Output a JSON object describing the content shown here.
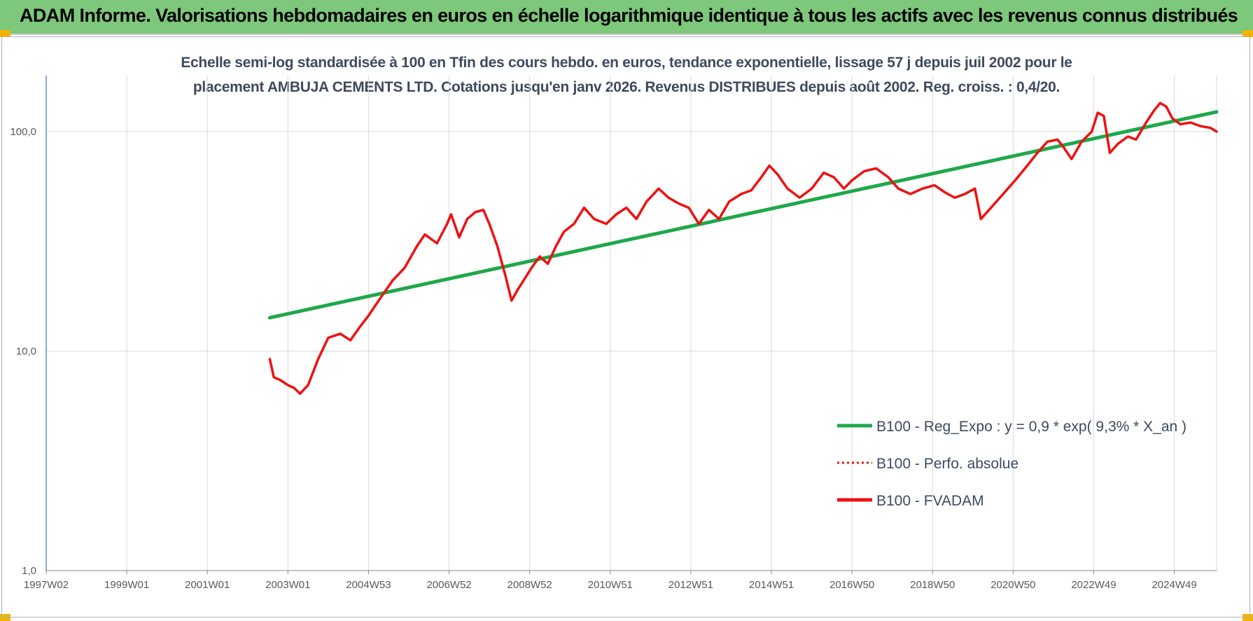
{
  "header": {
    "title": "ADAM Informe. Valorisations hebdomadaires en euros en échelle logarithmique identique à tous les actifs avec les revenus connus distribués"
  },
  "colors": {
    "header_bg": "#7dc87a",
    "corner": "#f0b400",
    "trend": "#1ea84a",
    "series": "#ee1111",
    "grid": "#d9d9d9",
    "axis_text": "#595959",
    "subtitle": "#3e4a5c"
  },
  "chart_data": {
    "type": "line",
    "title_line1": "Echelle semi-log standardisée à 100 en Tfin des cours hebdo. en euros, tendance exponentielle, lissage 57 j depuis juil 2002 pour le",
    "title_line2": "placement AMBUJA CEMENTS LTD. Cotations jusqu'en janv 2026. Revenus DISTRIBUES depuis août 2002. Reg. croiss. : 0,4/20.",
    "y_scale": "log",
    "ylim": [
      1,
      180
    ],
    "xlim": [
      1997.0,
      2026.05
    ],
    "y_ticks": [
      {
        "value": 1,
        "label": "1,0"
      },
      {
        "value": 10,
        "label": "10,0"
      },
      {
        "value": 100,
        "label": "100,0"
      }
    ],
    "x_ticks": [
      {
        "value": 1997.0,
        "label": "1997W02"
      },
      {
        "value": 1999.0,
        "label": "1999W01"
      },
      {
        "value": 2001.0,
        "label": "2001W01"
      },
      {
        "value": 2003.0,
        "label": "2003W01"
      },
      {
        "value": 2005.0,
        "label": "2004W53"
      },
      {
        "value": 2007.0,
        "label": "2006W52"
      },
      {
        "value": 2009.0,
        "label": "2008W52"
      },
      {
        "value": 2011.0,
        "label": "2010W51"
      },
      {
        "value": 2013.0,
        "label": "2012W51"
      },
      {
        "value": 2015.0,
        "label": "2014W51"
      },
      {
        "value": 2017.0,
        "label": "2016W50"
      },
      {
        "value": 2019.0,
        "label": "2018W50"
      },
      {
        "value": 2021.0,
        "label": "2020W50"
      },
      {
        "value": 2023.0,
        "label": "2022W49"
      },
      {
        "value": 2025.0,
        "label": "2024W49"
      }
    ],
    "series": [
      {
        "name": "B100 - Reg_Expo : y = 0,9 * exp( 9,3% *  X_an )",
        "style": "solid-green",
        "x": [
          2002.55,
          2026.05
        ],
        "y": [
          14.2,
          123
        ]
      },
      {
        "name": "B100 - Perfo. absolue",
        "style": "dotted-red",
        "x": [],
        "y": []
      },
      {
        "name": "B100 - FVADAM",
        "style": "solid-red",
        "x": [
          2002.55,
          2002.65,
          2002.8,
          2003.0,
          2003.15,
          2003.3,
          2003.5,
          2003.75,
          2004.0,
          2004.3,
          2004.55,
          2004.8,
          2005.0,
          2005.3,
          2005.6,
          2005.9,
          2006.2,
          2006.4,
          2006.7,
          2006.95,
          2007.05,
          2007.25,
          2007.45,
          2007.65,
          2007.85,
          2008.0,
          2008.2,
          2008.4,
          2008.55,
          2008.7,
          2008.85,
          2009.05,
          2009.25,
          2009.45,
          2009.65,
          2009.85,
          2010.1,
          2010.35,
          2010.6,
          2010.9,
          2011.15,
          2011.4,
          2011.65,
          2011.9,
          2012.2,
          2012.45,
          2012.7,
          2012.95,
          2013.2,
          2013.45,
          2013.7,
          2013.95,
          2014.25,
          2014.5,
          2014.75,
          2014.95,
          2015.15,
          2015.4,
          2015.7,
          2016.0,
          2016.3,
          2016.55,
          2016.8,
          2017.0,
          2017.3,
          2017.6,
          2017.9,
          2018.15,
          2018.45,
          2018.75,
          2019.05,
          2019.3,
          2019.55,
          2019.8,
          2020.05,
          2020.2,
          2020.45,
          2020.75,
          2021.05,
          2021.35,
          2021.6,
          2021.85,
          2022.1,
          2022.25,
          2022.45,
          2022.7,
          2022.95,
          2023.1,
          2023.25,
          2023.4,
          2023.6,
          2023.85,
          2024.05,
          2024.3,
          2024.5,
          2024.65,
          2024.8,
          2024.95,
          2025.15,
          2025.4,
          2025.65,
          2025.9,
          2026.05
        ],
        "y": [
          9.2,
          7.6,
          7.4,
          7.0,
          6.8,
          6.4,
          7.0,
          9.2,
          11.5,
          12.0,
          11.2,
          13.0,
          14.5,
          17.5,
          21.0,
          24.0,
          30.0,
          34.0,
          31.0,
          38.0,
          42.0,
          33.0,
          40.0,
          43.0,
          44.0,
          38.0,
          30.0,
          22.0,
          17.0,
          19.0,
          21.0,
          24.0,
          27.0,
          25.0,
          30.0,
          35.0,
          38.0,
          45.0,
          40.0,
          38.0,
          42.0,
          45.0,
          40.0,
          48.0,
          55.0,
          50.0,
          47.0,
          45.0,
          38.0,
          44.0,
          40.0,
          48.0,
          52.0,
          54.0,
          62.0,
          70.0,
          64.0,
          55.0,
          50.0,
          55.0,
          65.0,
          62.0,
          55.0,
          60.0,
          66.0,
          68.0,
          62.0,
          55.0,
          52.0,
          55.0,
          57.0,
          53.0,
          50.0,
          52.0,
          55.0,
          40.0,
          45.0,
          52.0,
          60.0,
          70.0,
          80.0,
          90.0,
          92.0,
          85.0,
          75.0,
          90.0,
          100.0,
          122.0,
          118.0,
          80.0,
          88.0,
          95.0,
          92.0,
          110.0,
          125.0,
          135.0,
          130.0,
          115.0,
          108.0,
          110.0,
          106.0,
          104.0,
          100.0
        ]
      }
    ],
    "legend_position": "bottom-right"
  }
}
